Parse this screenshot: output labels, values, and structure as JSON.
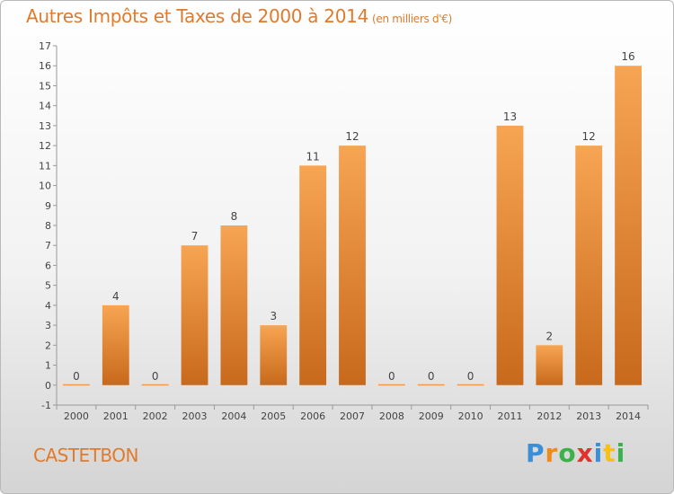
{
  "header": {
    "title": "Autres Impôts et Taxes de 2000 à 2014",
    "unit": "(en milliers d'€)"
  },
  "footer": {
    "commune": "CASTETBON",
    "logo_letters": [
      "P",
      "r",
      "o",
      "x",
      "i",
      "t",
      "i"
    ],
    "logo_colors": [
      "#3a8fd6",
      "#f08a1c",
      "#3cb14a",
      "#e2312d",
      "#3a8fd6",
      "#f5c20f",
      "#3cb14a"
    ]
  },
  "chart_data": {
    "type": "bar",
    "categories": [
      "2000",
      "2001",
      "2002",
      "2003",
      "2004",
      "2005",
      "2006",
      "2007",
      "2008",
      "2009",
      "2010",
      "2011",
      "2012",
      "2013",
      "2014"
    ],
    "values": [
      0,
      4,
      0,
      7,
      8,
      3,
      11,
      12,
      0,
      0,
      0,
      13,
      2,
      12,
      16
    ],
    "ylim": [
      -1,
      17
    ],
    "yticks": [
      -1,
      0,
      1,
      2,
      3,
      4,
      5,
      6,
      7,
      8,
      9,
      10,
      11,
      12,
      13,
      14,
      15,
      16,
      17
    ],
    "grid": false,
    "bar_color": "#f39a4a",
    "bar_color_dark": "#c96a1c"
  }
}
